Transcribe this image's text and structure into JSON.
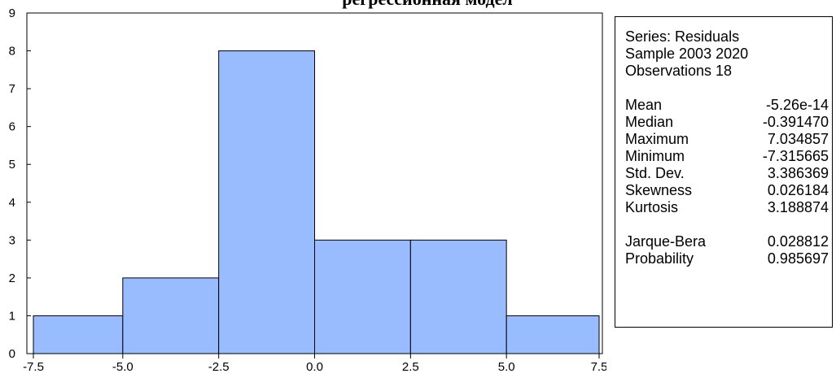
{
  "chart_data": {
    "type": "bar",
    "title": "регрессионная модел",
    "xlabel": "",
    "ylabel": "",
    "bin_edges": [
      -7.5,
      -5.0,
      -2.5,
      0.0,
      2.5,
      5.0,
      7.5
    ],
    "categories": [
      "-7.5 to -5.0",
      "-5.0 to -2.5",
      "-2.5 to 0.0",
      "0.0 to 2.5",
      "2.5 to 5.0",
      "5.0 to 7.5"
    ],
    "values": [
      1,
      2,
      8,
      3,
      3,
      1
    ],
    "xlim": [
      -7.5,
      7.5
    ],
    "ylim": [
      0,
      9
    ],
    "x_ticks": [
      "-7.5",
      "-5.0",
      "-2.5",
      "0.0",
      "2.5",
      "5.0",
      "7.5"
    ],
    "y_ticks": [
      "0",
      "1",
      "2",
      "3",
      "4",
      "5",
      "6",
      "7",
      "8",
      "9"
    ],
    "grid": false,
    "bar_color": "#99BBFF"
  },
  "stats": {
    "series_line": "Series: Residuals",
    "sample_line": "Sample 2003 2020",
    "observations_line": "Observations 18",
    "descriptive": [
      {
        "label": "Mean",
        "value": "-5.26e-14"
      },
      {
        "label": "Median",
        "value": "-0.391470"
      },
      {
        "label": "Maximum",
        "value": "7.034857"
      },
      {
        "label": "Minimum",
        "value": "-7.315665"
      },
      {
        "label": "Std. Dev.",
        "value": "3.386369"
      },
      {
        "label": "Skewness",
        "value": "0.026184"
      },
      {
        "label": "Kurtosis",
        "value": "3.188874"
      }
    ],
    "tests": [
      {
        "label": "Jarque-Bera",
        "value": "0.028812"
      },
      {
        "label": "Probability",
        "value": "0.985697"
      }
    ]
  }
}
